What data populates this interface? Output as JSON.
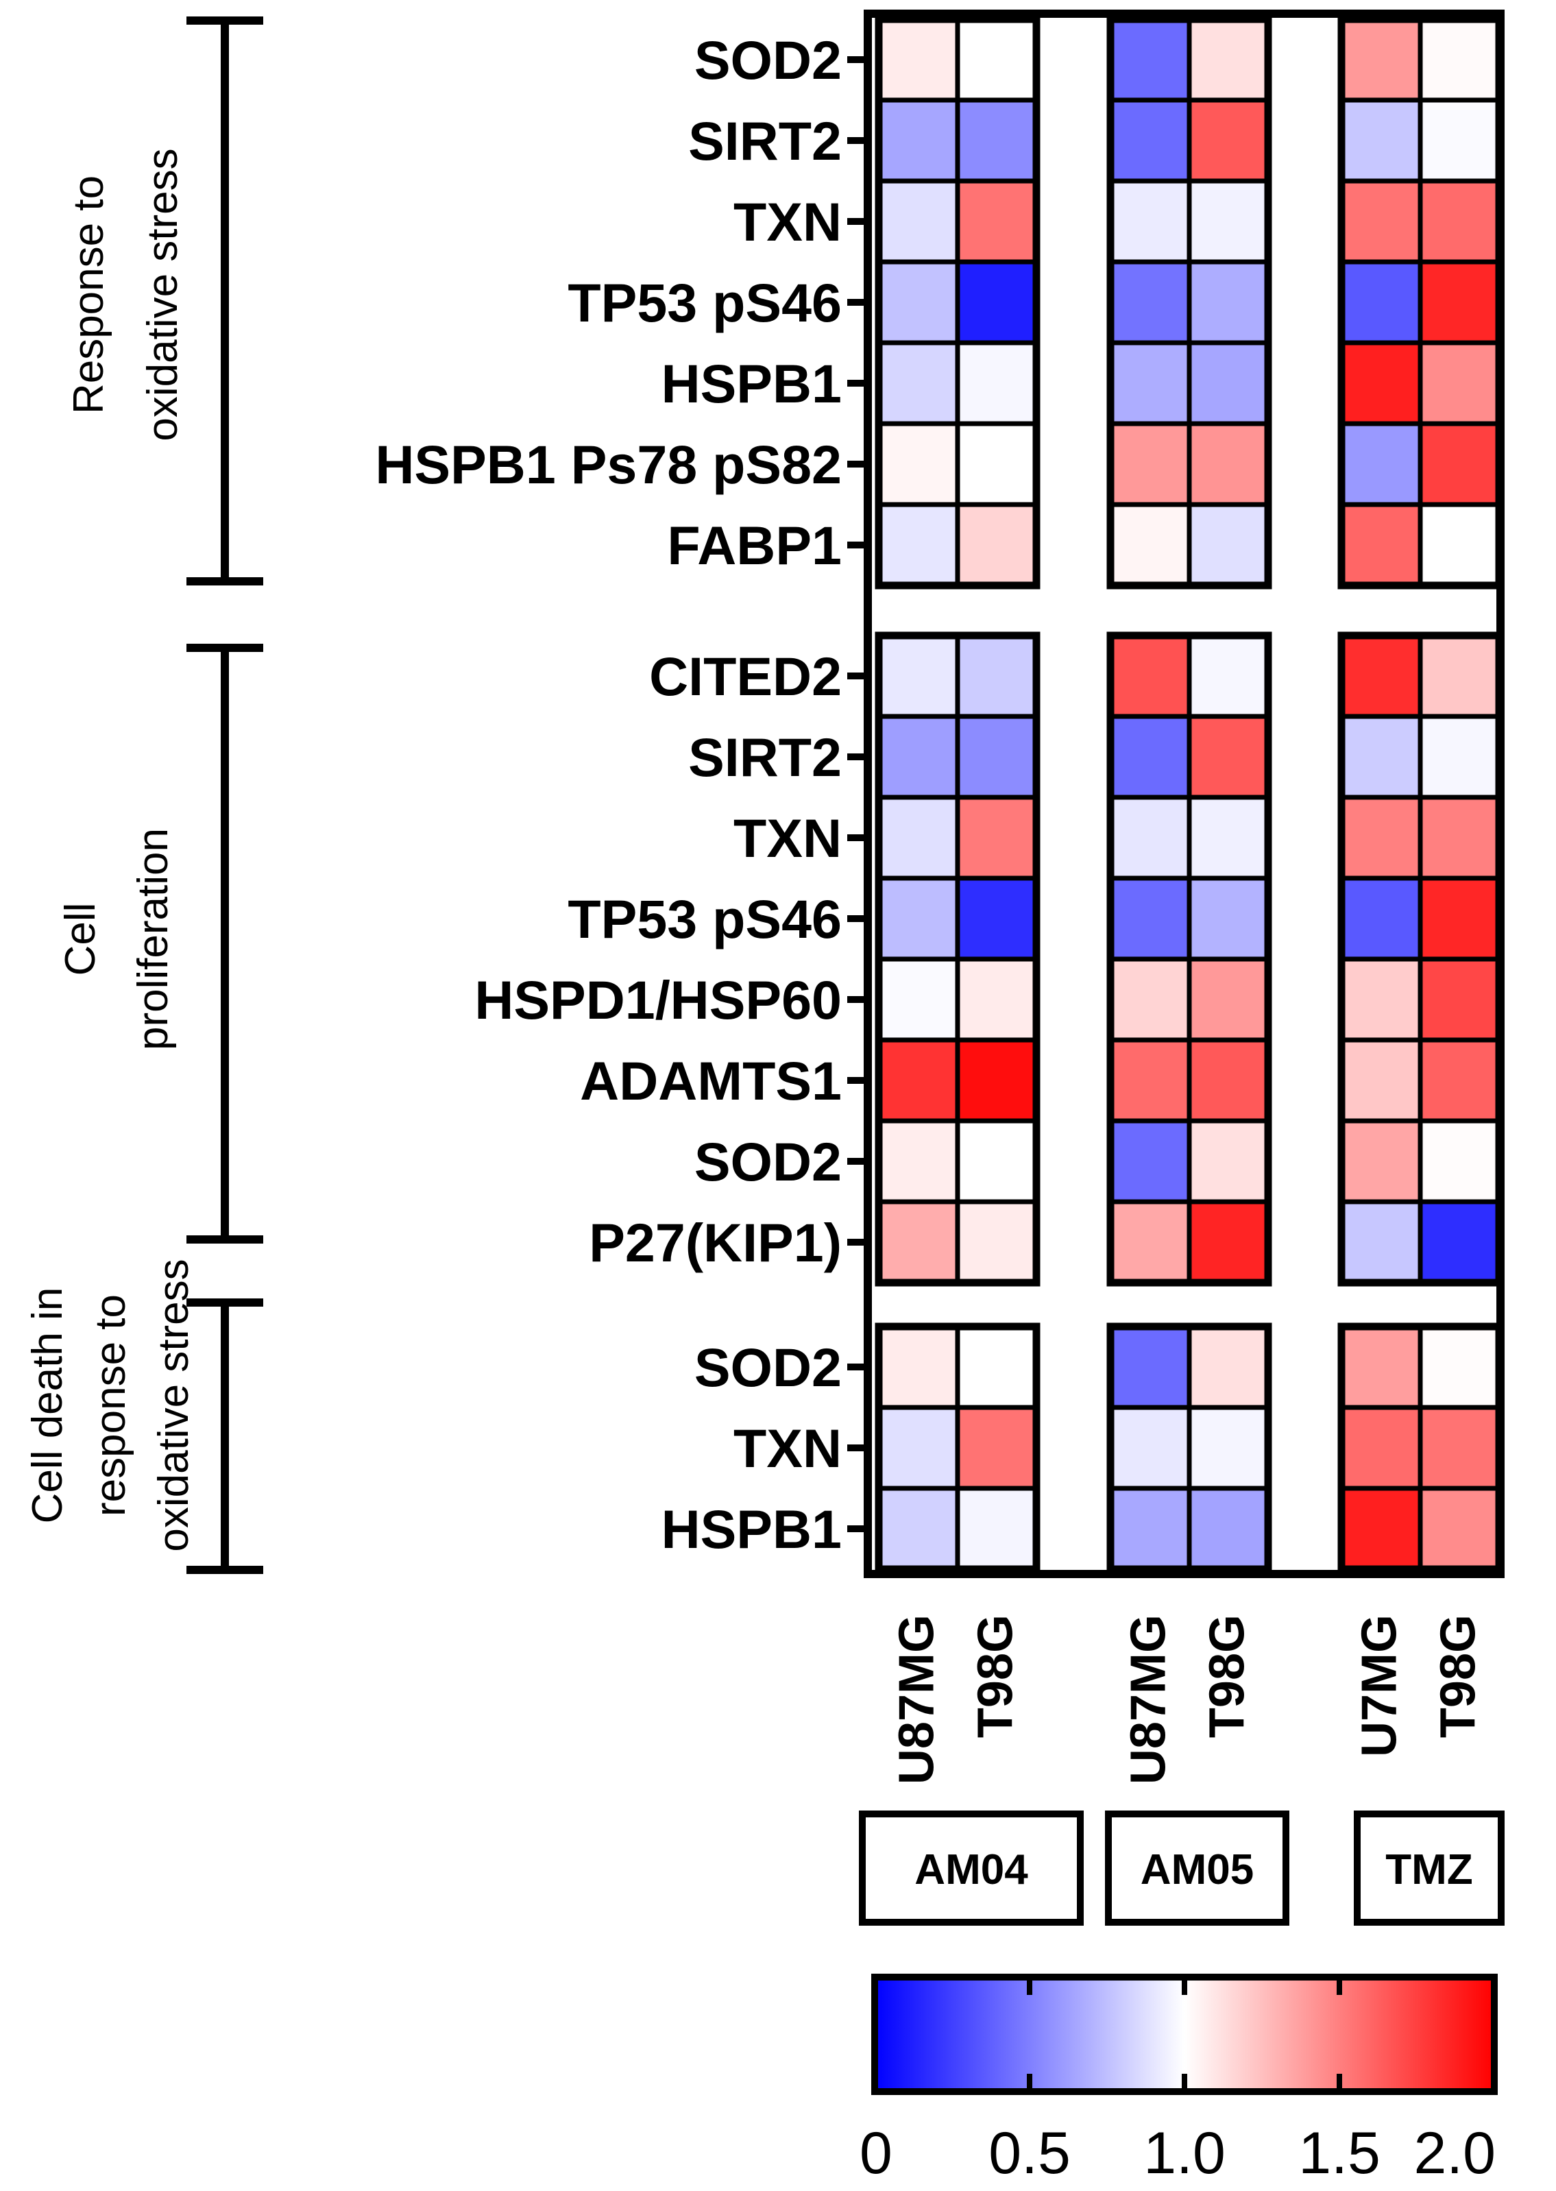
{
  "chart_data": {
    "type": "heatmap",
    "title": "",
    "rows": [
      "SOD2",
      "SIRT2",
      "TXN",
      "TP53 pS46",
      "HSPB1",
      "HSPB1 Ps78 pS82",
      "FABP1",
      "CITED2",
      "SIRT2",
      "TXN",
      "TP53 pS46",
      "HSPD1/HSP60",
      "ADAMTS1",
      "SOD2",
      "P27(KIP1)",
      "SOD2",
      "TXN",
      "HSPB1"
    ],
    "row_groups": [
      {
        "name": "Response to oxidative stress",
        "lines": [
          "Response to",
          "oxidative stress"
        ],
        "start": 0,
        "end": 6
      },
      {
        "name": "Cell proliferation",
        "lines": [
          "Cell",
          "proliferation"
        ],
        "start": 7,
        "end": 14
      },
      {
        "name": "Cell death in response to oxidative stress",
        "lines": [
          "Cell death in",
          "response to",
          "oxidative stress"
        ],
        "start": 15,
        "end": 17
      }
    ],
    "columns": [
      "U87MG",
      "T98G",
      "U87MG",
      "T98G",
      "U7MG",
      "T98G"
    ],
    "column_groups": [
      {
        "name": "AM04",
        "start": 0,
        "end": 1
      },
      {
        "name": "AM05",
        "start": 2,
        "end": 3
      },
      {
        "name": "TMZ",
        "start": 4,
        "end": 5
      }
    ],
    "values": [
      [
        1.08,
        1.0,
        0.42,
        1.12,
        1.4,
        1.02
      ],
      [
        0.65,
        0.55,
        0.42,
        1.65,
        0.78,
        0.98
      ],
      [
        0.88,
        1.55,
        0.92,
        0.95,
        1.55,
        1.58
      ],
      [
        0.76,
        0.12,
        0.45,
        0.68,
        0.35,
        1.85
      ],
      [
        0.84,
        0.97,
        0.68,
        0.65,
        1.88,
        1.45
      ],
      [
        1.04,
        1.0,
        1.4,
        1.42,
        0.6,
        1.75
      ],
      [
        0.9,
        1.17,
        1.04,
        0.88,
        1.6,
        1.0
      ],
      [
        0.91,
        0.8,
        1.68,
        0.97,
        1.82,
        1.22
      ],
      [
        0.62,
        0.55,
        0.42,
        1.65,
        0.8,
        0.97
      ],
      [
        0.88,
        1.52,
        0.9,
        0.94,
        1.5,
        1.5
      ],
      [
        0.74,
        0.18,
        0.42,
        0.7,
        0.35,
        1.85
      ],
      [
        0.98,
        1.08,
        1.17,
        1.4,
        1.2,
        1.72
      ],
      [
        1.8,
        1.95,
        1.58,
        1.65,
        1.22,
        1.62
      ],
      [
        1.07,
        1.0,
        0.42,
        1.12,
        1.35,
        1.01
      ],
      [
        1.32,
        1.08,
        1.34,
        1.86,
        0.78,
        0.18
      ],
      [
        1.08,
        1.0,
        0.42,
        1.12,
        1.38,
        1.01
      ],
      [
        0.88,
        1.55,
        0.91,
        0.96,
        1.58,
        1.55
      ],
      [
        0.82,
        0.96,
        0.66,
        0.64,
        1.88,
        1.45
      ]
    ],
    "colorscale": {
      "min": 0,
      "mid": 1.0,
      "max": 2.0,
      "min_color": "#0000ff",
      "mid_color": "#ffffff",
      "max_color": "#ff0000"
    },
    "colorbar_ticks": [
      "0",
      "0.5",
      "1.0",
      "1.5",
      "2.0"
    ]
  }
}
